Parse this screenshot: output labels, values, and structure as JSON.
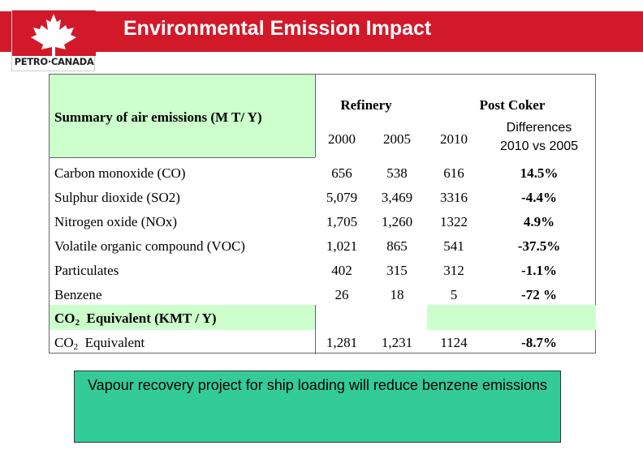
{
  "header": {
    "title": "Environmental Emission Impact",
    "logo_text": "PETRO·CANADA",
    "brand_color": "#d2192a"
  },
  "table": {
    "summary_label": "Summary of air emissions (M T/ Y)",
    "group_refinery": "Refinery",
    "group_post_coker": "Post Coker",
    "col_2000": "2000",
    "col_2005": "2005",
    "col_2010": "2010",
    "col_diff_line1": "Differences",
    "col_diff_line2": "2010 vs 2005",
    "rows": [
      {
        "label": "Carbon monoxide  (CO)",
        "v2000": "656",
        "v2005": "538",
        "v2010": "616",
        "diff": "14.5%"
      },
      {
        "label": "Sulphur dioxide (SO2)",
        "v2000": "5,079",
        "v2005": "3,469",
        "v2010": "3316",
        "diff": "-4.4%"
      },
      {
        "label": "Nitrogen oxide (NOx)",
        "v2000": "1,705",
        "v2005": "1,260",
        "v2010": "1322",
        "diff": "4.9%"
      },
      {
        "label": "Volatile organic compound (VOC)",
        "v2000": "1,021",
        "v2005": "865",
        "v2010": "541",
        "diff": "-37.5%"
      },
      {
        "label": "Particulates",
        "v2000": "402",
        "v2005": "315",
        "v2010": "312",
        "diff": "-1.1%"
      },
      {
        "label": "Benzene",
        "v2000": "26",
        "v2005": "18",
        "v2010": "5",
        "diff": "-72 %"
      }
    ],
    "co2_section": {
      "prefix": "CO",
      "subscript": "2",
      "suffix": "  Equivalent (KMT / Y)"
    },
    "co2_row": {
      "prefix": "CO",
      "subscript": "2",
      "suffix": "  Equivalent",
      "v2000": "1,281",
      "v2005": "1,231",
      "v2010": "1124",
      "diff": "-8.7%"
    },
    "highlight_color": "#ccffcc"
  },
  "callout": {
    "text": "Vapour recovery project for ship loading will reduce benzene emissions",
    "bg_color": "#33cc99"
  }
}
